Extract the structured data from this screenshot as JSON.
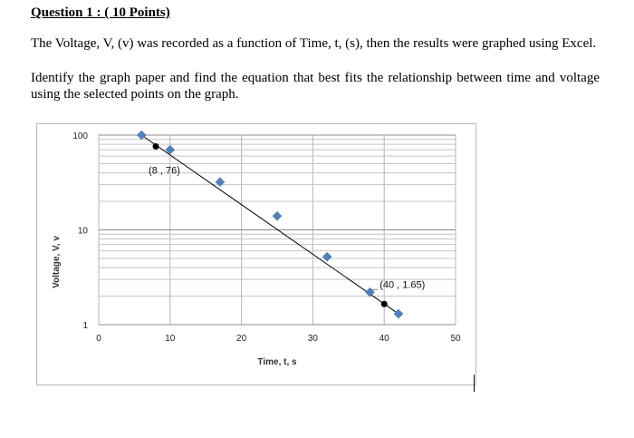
{
  "question": {
    "title": "Question 1 : ( 10 Points)",
    "paragraph1": "The Voltage, V, (v) was recorded as a function of Time, t, (s), then the results were graphed using Excel.",
    "paragraph2": "Identify the graph paper and find the equation that best fits the relationship between time and voltage using the selected points on the graph."
  },
  "chart_data": {
    "type": "scatter",
    "xlabel": "Time, t, s",
    "ylabel": "Voltage, V, v",
    "xlim": [
      0,
      50
    ],
    "ylim": [
      1,
      100
    ],
    "yscale": "log",
    "xticks": [
      "0",
      "10",
      "20",
      "30",
      "40",
      "50"
    ],
    "yticks": [
      "1",
      "10",
      "100"
    ],
    "grid": true,
    "series": [
      {
        "marker": "diamond",
        "color": "#4f81bd",
        "points": [
          [
            6,
            100
          ],
          [
            10,
            70
          ],
          [
            17,
            32
          ],
          [
            25,
            14
          ],
          [
            32,
            5.2
          ],
          [
            38,
            2.2
          ],
          [
            42,
            1.3
          ]
        ]
      }
    ],
    "trendline": {
      "from": [
        6,
        100
      ],
      "to": [
        42,
        1.3
      ],
      "color": "#000000"
    },
    "selected_points": [
      {
        "x": 8,
        "y": 76,
        "label": "(8 , 76)"
      },
      {
        "x": 40,
        "y": 1.65,
        "label": "(40 , 1.65)"
      }
    ]
  }
}
